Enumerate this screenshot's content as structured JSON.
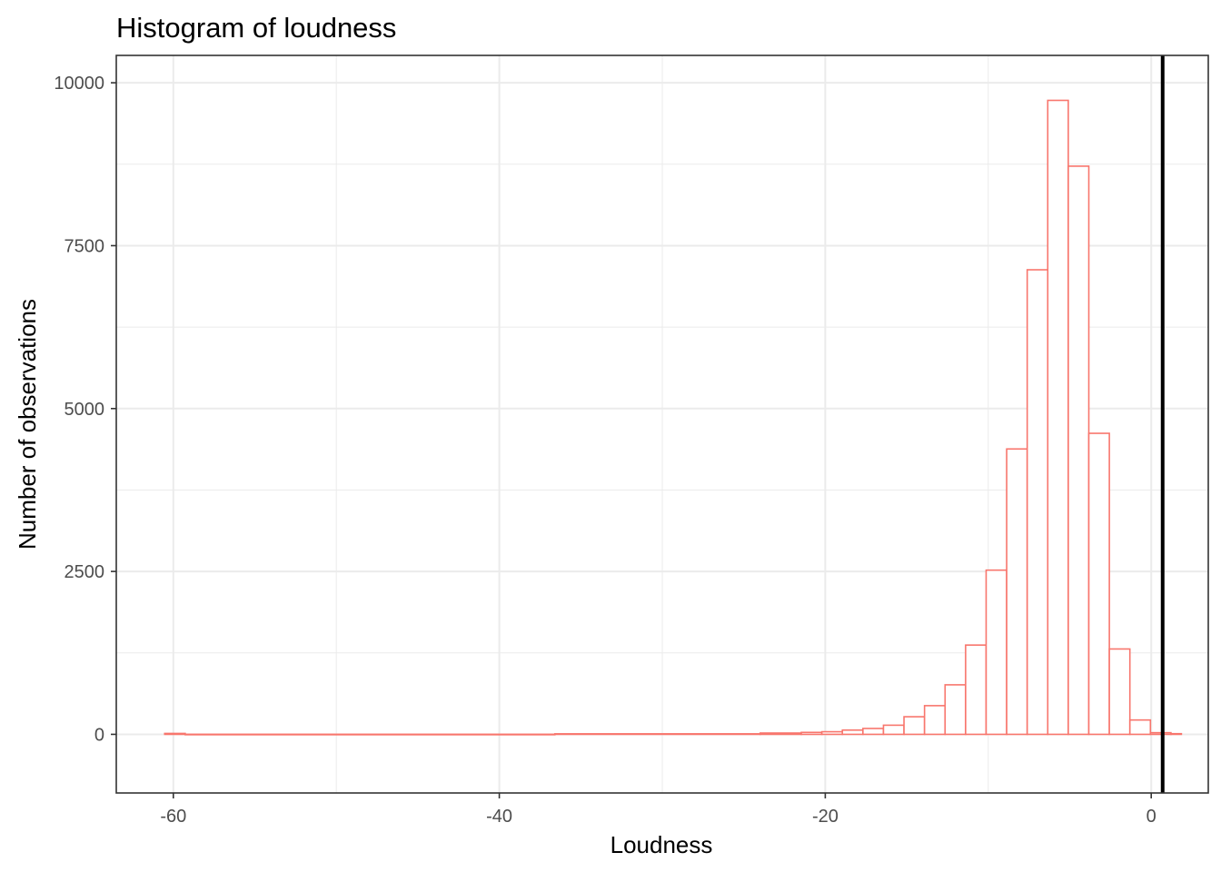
{
  "chart_data": {
    "type": "histogram",
    "title": "Histogram of loudness",
    "xlabel": "Loudness",
    "ylabel": "Number of observations",
    "xlim": [
      -63.5,
      3.5
    ],
    "ylim": [
      -900,
      10420
    ],
    "x_ticks": [
      -60,
      -40,
      -20,
      0
    ],
    "x_tick_labels": [
      "-60",
      "-40",
      "-20",
      "0"
    ],
    "y_ticks": [
      0,
      2500,
      5000,
      7500,
      10000
    ],
    "y_tick_labels": [
      "0",
      "2500",
      "5000",
      "7500",
      "10000"
    ],
    "x_minor_ticks": [
      -50,
      -30,
      -10
    ],
    "y_minor_ticks": [
      1250,
      3750,
      6250,
      8750
    ],
    "grid": true,
    "bin_width": 1.26,
    "bar_outline_color": "#F8766D",
    "bar_fill_color": "#FFFFFF",
    "vline": {
      "x": 0.7,
      "color": "#000000"
    },
    "bins": [
      {
        "x0": -60.53,
        "x1": -59.27,
        "count": 14
      },
      {
        "x0": -59.27,
        "x1": -36.59,
        "count": 1
      },
      {
        "x0": -36.59,
        "x1": -23.99,
        "count": 8
      },
      {
        "x0": -23.99,
        "x1": -21.47,
        "count": 20
      },
      {
        "x0": -21.47,
        "x1": -20.21,
        "count": 30
      },
      {
        "x0": -20.21,
        "x1": -18.95,
        "count": 40
      },
      {
        "x0": -18.95,
        "x1": -17.69,
        "count": 65
      },
      {
        "x0": -17.69,
        "x1": -16.43,
        "count": 90
      },
      {
        "x0": -16.43,
        "x1": -15.17,
        "count": 140
      },
      {
        "x0": -15.17,
        "x1": -13.91,
        "count": 270
      },
      {
        "x0": -13.91,
        "x1": -12.65,
        "count": 440
      },
      {
        "x0": -12.65,
        "x1": -11.39,
        "count": 760
      },
      {
        "x0": -11.39,
        "x1": -10.13,
        "count": 1370
      },
      {
        "x0": -10.13,
        "x1": -8.87,
        "count": 2520
      },
      {
        "x0": -8.87,
        "x1": -7.61,
        "count": 4380
      },
      {
        "x0": -7.61,
        "x1": -6.35,
        "count": 7130
      },
      {
        "x0": -6.35,
        "x1": -5.09,
        "count": 9730
      },
      {
        "x0": -5.09,
        "x1": -3.83,
        "count": 8720
      },
      {
        "x0": -3.83,
        "x1": -2.57,
        "count": 4620
      },
      {
        "x0": -2.57,
        "x1": -1.31,
        "count": 1310
      },
      {
        "x0": -1.31,
        "x1": -0.05,
        "count": 220
      },
      {
        "x0": -0.05,
        "x1": 1.21,
        "count": 25
      },
      {
        "x0": 1.21,
        "x1": 1.85,
        "count": 10
      }
    ]
  }
}
